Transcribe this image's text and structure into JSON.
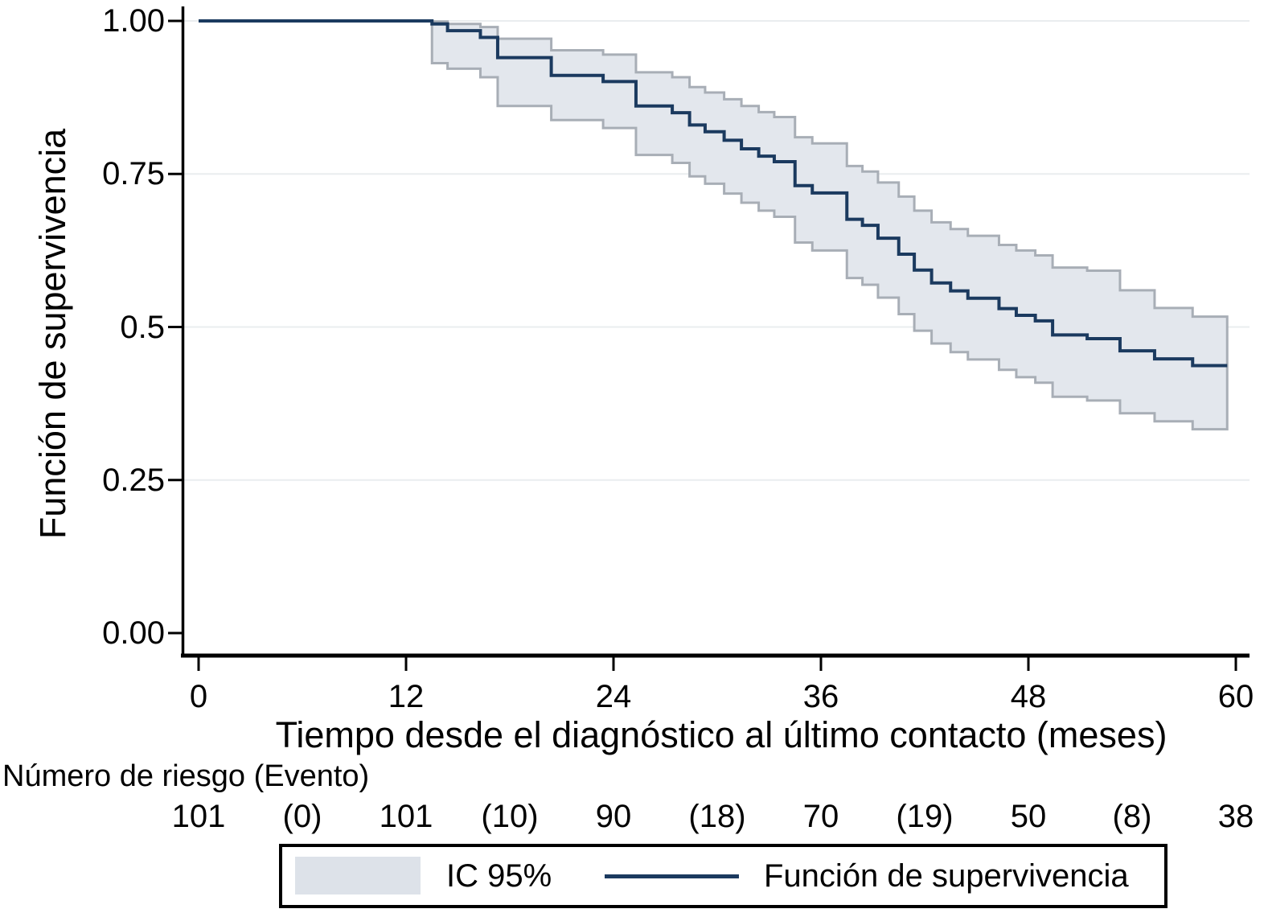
{
  "legend": {
    "ci_label": "IC 95%",
    "line_label": "Función de supervivencia"
  },
  "chart_data": {
    "type": "line",
    "subtype": "kaplan-meier-step-with-ci-band",
    "title": "",
    "xlabel": "Tiempo desde el diagnóstico al último contacto (meses)",
    "ylabel": "Función de supervivencia",
    "xlim": [
      0,
      60
    ],
    "ylim": [
      0,
      1
    ],
    "grid": "horizontal",
    "legend_position": "bottom",
    "x_ticks": [
      {
        "value": 0,
        "label": "0"
      },
      {
        "value": 12,
        "label": "12"
      },
      {
        "value": 24,
        "label": "24"
      },
      {
        "value": 36,
        "label": "36"
      },
      {
        "value": 48,
        "label": "48"
      },
      {
        "value": 60,
        "label": "60"
      }
    ],
    "y_ticks": [
      {
        "value": 1.0,
        "label": "1.00"
      },
      {
        "value": 0.75,
        "label": "0.75"
      },
      {
        "value": 0.5,
        "label": "0.5"
      },
      {
        "value": 0.25,
        "label": "0.25"
      },
      {
        "value": 0.0,
        "label": "0.00"
      }
    ],
    "colors": {
      "line": "#1b3a5f",
      "band_fill": "#e3e7ed",
      "band_edge": "#a8aeb6",
      "grid": "#eaedef",
      "axis": "#000000",
      "legend_swatch": "#dde2e9"
    },
    "series": [
      {
        "name": "Función de supervivencia",
        "band_name": "IC 95%",
        "end_time": 59.5,
        "steps_format": [
          "t_months",
          "survival",
          "ci_lower",
          "ci_upper"
        ],
        "steps": [
          [
            0,
            1.0,
            null,
            null
          ],
          [
            13.5,
            0.995,
            0.931,
            0.999
          ],
          [
            14.4,
            0.984,
            0.922,
            0.995
          ],
          [
            16.3,
            0.973,
            0.908,
            0.99
          ],
          [
            17.3,
            0.94,
            0.861,
            0.971
          ],
          [
            20.4,
            0.911,
            0.838,
            0.952
          ],
          [
            23.4,
            0.901,
            0.825,
            0.945
          ],
          [
            25.3,
            0.861,
            0.781,
            0.916
          ],
          [
            27.4,
            0.85,
            0.768,
            0.908
          ],
          [
            28.4,
            0.83,
            0.746,
            0.892
          ],
          [
            29.3,
            0.819,
            0.734,
            0.883
          ],
          [
            30.4,
            0.805,
            0.718,
            0.872
          ],
          [
            31.4,
            0.791,
            0.703,
            0.861
          ],
          [
            32.4,
            0.779,
            0.69,
            0.851
          ],
          [
            33.3,
            0.77,
            0.68,
            0.843
          ],
          [
            34.5,
            0.731,
            0.638,
            0.81
          ],
          [
            35.5,
            0.719,
            0.625,
            0.8
          ],
          [
            37.5,
            0.676,
            0.58,
            0.763
          ],
          [
            38.4,
            0.666,
            0.569,
            0.754
          ],
          [
            39.3,
            0.645,
            0.548,
            0.736
          ],
          [
            40.5,
            0.619,
            0.521,
            0.713
          ],
          [
            41.4,
            0.593,
            0.494,
            0.69
          ],
          [
            42.4,
            0.572,
            0.473,
            0.671
          ],
          [
            43.5,
            0.559,
            0.459,
            0.66
          ],
          [
            44.5,
            0.547,
            0.447,
            0.649
          ],
          [
            46.3,
            0.53,
            0.43,
            0.634
          ],
          [
            47.3,
            0.519,
            0.418,
            0.625
          ],
          [
            48.4,
            0.51,
            0.409,
            0.617
          ],
          [
            49.4,
            0.487,
            0.386,
            0.597
          ],
          [
            51.4,
            0.481,
            0.38,
            0.592
          ],
          [
            53.3,
            0.461,
            0.359,
            0.56
          ],
          [
            55.3,
            0.448,
            0.346,
            0.531
          ],
          [
            57.5,
            0.437,
            0.333,
            0.517
          ]
        ]
      }
    ],
    "risk_table": {
      "label": "Número de riesgo (Evento)",
      "at_risk": [
        {
          "t": 0,
          "label": "101"
        },
        {
          "t": 12,
          "label": "101"
        },
        {
          "t": 24,
          "label": "90"
        },
        {
          "t": 36,
          "label": "70"
        },
        {
          "t": 48,
          "label": "50"
        },
        {
          "t": 60,
          "label": "38"
        }
      ],
      "events": [
        {
          "t": 6,
          "label": "(0)"
        },
        {
          "t": 18,
          "label": "(10)"
        },
        {
          "t": 30,
          "label": "(18)"
        },
        {
          "t": 42,
          "label": "(19)"
        },
        {
          "t": 54,
          "label": "(8)"
        }
      ]
    }
  }
}
